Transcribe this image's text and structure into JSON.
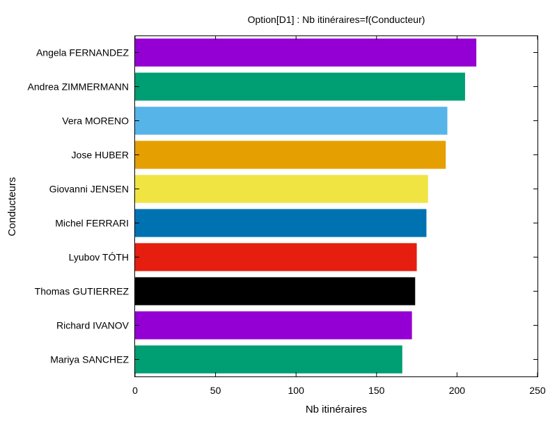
{
  "chart_data": {
    "type": "bar",
    "orientation": "horizontal",
    "title": "Option[D1] : Nb itinéraires=f(Conducteur)",
    "xlabel": "Nb itinéraires",
    "ylabel": "Conducteurs",
    "xlim": [
      0,
      250
    ],
    "xticks": [
      "0",
      "50",
      "100",
      "150",
      "200",
      "250"
    ],
    "grid": false,
    "categories": [
      "Angela FERNANDEZ",
      "Andrea ZIMMERMANN",
      "Vera MORENO",
      "Jose HUBER",
      "Giovanni JENSEN",
      "Michel FERRARI",
      "Lyubov TÓTH",
      "Thomas GUTIERREZ",
      "Richard IVANOV",
      "Mariya SANCHEZ"
    ],
    "values": [
      212,
      205,
      194,
      193,
      182,
      181,
      175,
      174,
      172,
      166
    ],
    "colors": [
      "#9400d3",
      "#009e73",
      "#56b4e9",
      "#e69f00",
      "#f0e442",
      "#0072b2",
      "#e51e10",
      "#000000",
      "#9400d3",
      "#009e73"
    ]
  }
}
